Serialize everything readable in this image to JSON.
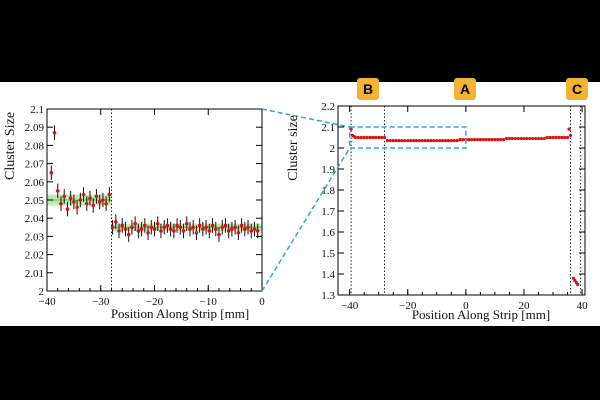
{
  "figure": {
    "badges": [
      {
        "label": "B",
        "color": "#f5b335"
      },
      {
        "label": "A",
        "color": "#f5b335"
      },
      {
        "label": "C",
        "color": "#f5b335"
      }
    ],
    "accent_blue": "#2aa7e0",
    "marker_color": "#e01010",
    "band_color": "#a8e6a0"
  },
  "chart_data": [
    {
      "type": "scatter",
      "panel": "left-zoom",
      "xlabel": "Position Along Strip [mm]",
      "ylabel": "Cluster Size",
      "xlim": [
        -40,
        0
      ],
      "ylim": [
        2.0,
        2.1
      ],
      "xticks": [
        -40,
        -30,
        -20,
        -10,
        0
      ],
      "xtick_labels": [
        "−40",
        "−30",
        "−20",
        "−10",
        "0"
      ],
      "yticks": [
        2.0,
        2.01,
        2.02,
        2.03,
        2.04,
        2.05,
        2.06,
        2.07,
        2.08,
        2.09,
        2.1
      ],
      "ytick_labels": [
        "2",
        "2.01",
        "2.02",
        "2.03",
        "2.04",
        "2.05",
        "2.06",
        "2.07",
        "2.08",
        "2.09",
        "2.1"
      ],
      "grid": false,
      "vlines": [
        -28
      ],
      "fit_bands": [
        {
          "x": [
            -40,
            -28
          ],
          "y": 2.05,
          "halfwidth": 0.003
        },
        {
          "x": [
            -28,
            0
          ],
          "y": 2.035,
          "halfwidth": 0.002
        }
      ],
      "x": [
        -39.2,
        -38.6,
        -38.0,
        -37.4,
        -36.8,
        -36.2,
        -35.6,
        -35.0,
        -34.4,
        -33.8,
        -33.2,
        -32.6,
        -32.0,
        -31.4,
        -30.8,
        -30.2,
        -29.6,
        -29.0,
        -28.4,
        -27.8,
        -27.2,
        -26.6,
        -26.0,
        -25.4,
        -24.8,
        -24.2,
        -23.6,
        -23.0,
        -22.4,
        -21.8,
        -21.2,
        -20.6,
        -20.0,
        -19.4,
        -18.8,
        -18.2,
        -17.6,
        -17.0,
        -16.4,
        -15.8,
        -15.2,
        -14.6,
        -14.0,
        -13.4,
        -12.8,
        -12.2,
        -11.6,
        -11.0,
        -10.4,
        -9.8,
        -9.2,
        -8.6,
        -8.0,
        -7.4,
        -6.8,
        -6.2,
        -5.6,
        -5.0,
        -4.4,
        -3.8,
        -3.2,
        -2.6,
        -2.0,
        -1.4,
        -0.8
      ],
      "y": [
        2.065,
        2.087,
        2.055,
        2.048,
        2.052,
        2.045,
        2.051,
        2.049,
        2.046,
        2.05,
        2.053,
        2.048,
        2.051,
        2.047,
        2.052,
        2.049,
        2.05,
        2.048,
        2.053,
        2.035,
        2.038,
        2.033,
        2.036,
        2.034,
        2.031,
        2.035,
        2.037,
        2.033,
        2.034,
        2.036,
        2.032,
        2.035,
        2.034,
        2.037,
        2.033,
        2.035,
        2.036,
        2.034,
        2.033,
        2.036,
        2.035,
        2.033,
        2.037,
        2.034,
        2.035,
        2.032,
        2.036,
        2.034,
        2.035,
        2.033,
        2.036,
        2.034,
        2.031,
        2.035,
        2.036,
        2.033,
        2.034,
        2.035,
        2.032,
        2.036,
        2.034,
        2.035,
        2.033,
        2.034,
        2.033
      ],
      "yerr": 0.004
    },
    {
      "type": "scatter",
      "panel": "right-full",
      "xlabel": "Position Along Strip [mm]",
      "ylabel": "Cluster size",
      "xlim": [
        -44,
        41
      ],
      "ylim": [
        1.3,
        2.2
      ],
      "xticks": [
        -40,
        -20,
        0,
        20,
        40
      ],
      "xtick_labels": [
        "−40",
        "−20",
        "0",
        "20",
        "40"
      ],
      "yticks": [
        1.3,
        1.4,
        1.5,
        1.6,
        1.7,
        1.8,
        1.9,
        2.0,
        2.1,
        2.2
      ],
      "ytick_labels": [
        "1.3",
        "1.4",
        "1.5",
        "1.6",
        "1.7",
        "1.8",
        "1.9",
        "2",
        "2.1",
        "2.2"
      ],
      "grid": false,
      "vlines": [
        -39.5,
        -28,
        36,
        39.5
      ],
      "zoom_box": {
        "x": [
          -40,
          0
        ],
        "y": [
          2.0,
          2.1
        ]
      },
      "x": [
        -39.5,
        -39.0,
        -38.5,
        -38.0,
        -37.0,
        -36.0,
        -35.0,
        -34.0,
        -33.0,
        -32.0,
        -31.0,
        -30.0,
        -29.0,
        -28.0,
        -27.0,
        -26.0,
        -25.0,
        -24.0,
        -23.0,
        -22.0,
        -21.0,
        -20.0,
        -19.0,
        -18.0,
        -17.0,
        -16.0,
        -15.0,
        -14.0,
        -13.0,
        -12.0,
        -11.0,
        -10.0,
        -9.0,
        -8.0,
        -7.0,
        -6.0,
        -5.0,
        -4.0,
        -3.0,
        -2.0,
        -1.0,
        0.0,
        1.0,
        2.0,
        3.0,
        4.0,
        5.0,
        6.0,
        7.0,
        8.0,
        9.0,
        10.0,
        11.0,
        12.0,
        13.0,
        14.0,
        15.0,
        16.0,
        17.0,
        18.0,
        19.0,
        20.0,
        21.0,
        22.0,
        23.0,
        24.0,
        25.0,
        26.0,
        27.0,
        28.0,
        29.0,
        30.0,
        31.0,
        32.0,
        33.0,
        34.0,
        35.0,
        35.5,
        36.0,
        37.0,
        37.5,
        38.0,
        38.5
      ],
      "y": [
        2.09,
        2.06,
        2.055,
        2.05,
        2.05,
        2.05,
        2.05,
        2.05,
        2.05,
        2.05,
        2.05,
        2.05,
        2.05,
        2.05,
        2.035,
        2.035,
        2.035,
        2.035,
        2.035,
        2.035,
        2.035,
        2.035,
        2.035,
        2.035,
        2.035,
        2.035,
        2.035,
        2.035,
        2.035,
        2.035,
        2.035,
        2.035,
        2.035,
        2.035,
        2.035,
        2.035,
        2.035,
        2.035,
        2.035,
        2.04,
        2.04,
        2.04,
        2.04,
        2.04,
        2.04,
        2.04,
        2.04,
        2.04,
        2.04,
        2.04,
        2.04,
        2.04,
        2.04,
        2.04,
        2.04,
        2.045,
        2.045,
        2.045,
        2.045,
        2.045,
        2.045,
        2.045,
        2.045,
        2.045,
        2.045,
        2.045,
        2.045,
        2.045,
        2.045,
        2.05,
        2.05,
        2.05,
        2.05,
        2.05,
        2.05,
        2.05,
        2.05,
        2.09,
        2.06,
        1.38,
        1.37,
        1.36,
        1.35
      ]
    }
  ]
}
